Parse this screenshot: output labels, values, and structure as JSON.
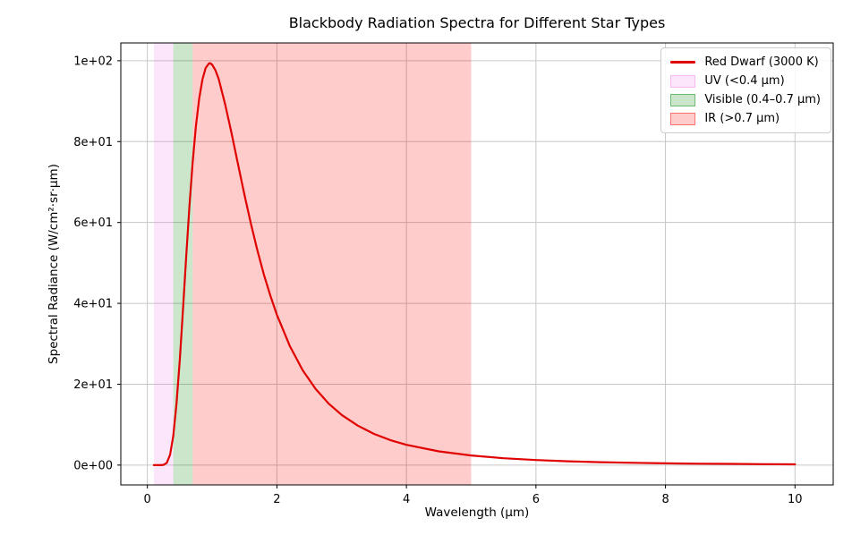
{
  "figure": {
    "background": "#ffffff",
    "frame_color": "#000000",
    "grid_color": "#c6c6c6"
  },
  "legend": {
    "items": [
      {
        "key": "red-dwarf",
        "label": "Red Dwarf (3000 K)",
        "swatch": "line",
        "color": "#e00000",
        "alpha": 1.0
      },
      {
        "key": "uv",
        "label": "UV (<0.4 μm)",
        "swatch": "patch",
        "color": "#ee82ee",
        "alpha": 0.2
      },
      {
        "key": "visible",
        "label": "Visible (0.4–0.7 μm)",
        "swatch": "patch",
        "color": "#008000",
        "alpha": 0.2
      },
      {
        "key": "ir",
        "label": "IR (>0.7 μm)",
        "swatch": "patch",
        "color": "#ff0000",
        "alpha": 0.2
      }
    ]
  },
  "chart_data": {
    "type": "line",
    "title": "Blackbody Radiation Spectra for Different Star Types",
    "xlabel": "Wavelength (μm)",
    "ylabel": "Spectral Radiance (W/cm²·sr·μm)",
    "xlim": [
      -0.41,
      10.59
    ],
    "ylim": [
      -4.9,
      104.4
    ],
    "grid": true,
    "legend_position": "upper right",
    "xticks": {
      "values": [
        0,
        2,
        4,
        6,
        8,
        10
      ],
      "labels": [
        "0",
        "2",
        "4",
        "6",
        "8",
        "10"
      ]
    },
    "yticks": {
      "values": [
        0,
        20,
        40,
        60,
        80,
        100
      ],
      "labels": [
        "0e+00",
        "2e+01",
        "4e+01",
        "6e+01",
        "8e+01",
        "1e+02"
      ]
    },
    "bands": [
      {
        "key": "uv-band",
        "label": "UV (<0.4 μm)",
        "from": 0.1,
        "to": 0.4,
        "color": "#ee82ee",
        "alpha": 0.2
      },
      {
        "key": "visible-band",
        "label": "Visible (0.4–0.7 μm)",
        "from": 0.4,
        "to": 0.7,
        "color": "#008000",
        "alpha": 0.2
      },
      {
        "key": "ir-band",
        "label": "IR (>0.7 μm)",
        "from": 0.7,
        "to": 5.0,
        "color": "#ff0000",
        "alpha": 0.2
      }
    ],
    "series": [
      {
        "name": "Red Dwarf (3000 K)",
        "color": "#e00000",
        "linewidth": 2.2,
        "x": [
          0.1,
          0.15,
          0.2,
          0.25,
          0.3,
          0.35,
          0.4,
          0.45,
          0.5,
          0.55,
          0.6,
          0.65,
          0.7,
          0.75,
          0.8,
          0.85,
          0.9,
          0.95,
          0.966,
          1.0,
          1.05,
          1.1,
          1.2,
          1.3,
          1.4,
          1.5,
          1.6,
          1.7,
          1.8,
          1.9,
          2.0,
          2.2,
          2.4,
          2.6,
          2.8,
          3.0,
          3.25,
          3.5,
          3.75,
          4.0,
          4.5,
          5.0,
          5.5,
          6.0,
          6.5,
          7.0,
          7.5,
          8.0,
          8.5,
          9.0,
          9.5,
          10.0
        ],
        "y": [
          0.0,
          0.0,
          0.0,
          0.06,
          0.56,
          2.53,
          7.2,
          15.13,
          26.02,
          38.58,
          51.72,
          64.12,
          74.96,
          83.8,
          90.68,
          95.37,
          98.21,
          99.32,
          99.4,
          99.05,
          97.66,
          95.54,
          89.28,
          82.13,
          74.35,
          66.78,
          59.57,
          53.03,
          47.08,
          41.82,
          37.17,
          29.42,
          23.43,
          18.79,
          15.2,
          12.4,
          9.74,
          7.71,
          6.19,
          5.01,
          3.39,
          2.37,
          1.7,
          1.25,
          0.94,
          0.72,
          0.56,
          0.44,
          0.35,
          0.29,
          0.23,
          0.19
        ]
      }
    ]
  }
}
